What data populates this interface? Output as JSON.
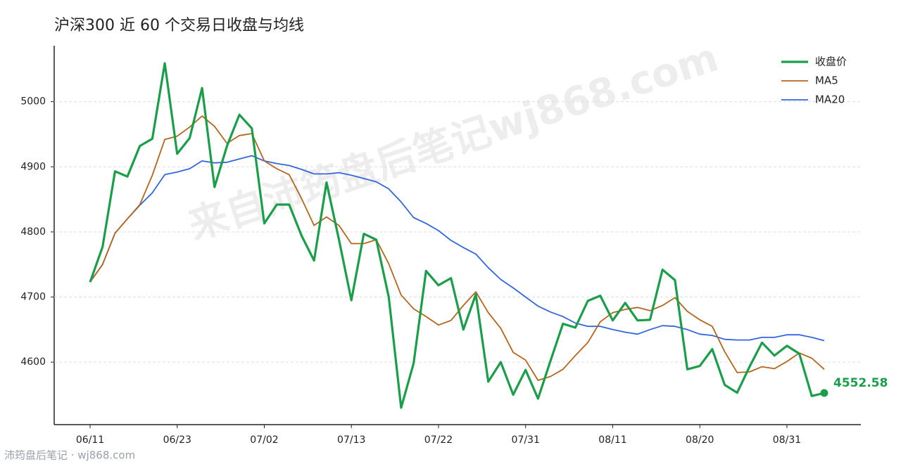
{
  "chart_data": {
    "type": "line",
    "title": "沪深300 近 60 个交易日收盘与均线",
    "watermark": "来自沛筠盘后笔记wj868.com",
    "footer": "沛筠盘后笔记 · wj868.com",
    "categories": [
      "06/11",
      null,
      null,
      null,
      null,
      null,
      null,
      "06/23",
      null,
      null,
      null,
      null,
      null,
      null,
      "07/02",
      null,
      null,
      null,
      null,
      null,
      null,
      "07/13",
      null,
      null,
      null,
      null,
      null,
      null,
      "07/22",
      null,
      null,
      null,
      null,
      null,
      null,
      "07/31",
      null,
      null,
      null,
      null,
      null,
      null,
      "08/11",
      null,
      null,
      null,
      null,
      null,
      null,
      "08/20",
      null,
      null,
      null,
      null,
      null,
      null,
      "08/31",
      null,
      null,
      null
    ],
    "series": [
      {
        "name": "收盘价",
        "color": "#1a9e4a",
        "values": [
          4723,
          4777,
          4893,
          4885,
          4932,
          4943,
          5059,
          4920,
          4944,
          5021,
          4869,
          4932,
          4980,
          4959,
          4813,
          4842,
          4842,
          4794,
          4756,
          4876,
          4788,
          4695,
          4797,
          4788,
          4700,
          4530,
          4598,
          4740,
          4718,
          4729,
          4650,
          4704,
          4570,
          4600,
          4550,
          4588,
          4544,
          4602,
          4659,
          4653,
          4694,
          4702,
          4664,
          4691,
          4664,
          4665,
          4742,
          4726,
          4589,
          4594,
          4620,
          4565,
          4553,
          4593,
          4630,
          4610,
          4625,
          4613,
          4548,
          4552.58
        ]
      },
      {
        "name": "MA5",
        "color": "#b5651d",
        "values": [
          4723,
          4750,
          4798,
          4820,
          4842,
          4887,
          4942,
          4947,
          4961,
          4978,
          4962,
          4936,
          4948,
          4951,
          4909,
          4897,
          4888,
          4851,
          4810,
          4823,
          4810,
          4782,
          4782,
          4788,
          4751,
          4703,
          4682,
          4670,
          4657,
          4664,
          4687,
          4708,
          4676,
          4652,
          4615,
          4603,
          4572,
          4578,
          4589,
          4610,
          4630,
          4662,
          4676,
          4681,
          4684,
          4679,
          4687,
          4699,
          4678,
          4665,
          4655,
          4616,
          4584,
          4585,
          4593,
          4590,
          4601,
          4614,
          4606,
          4589
        ]
      },
      {
        "name": "MA20",
        "color": "#3366dd",
        "values": [
          4723,
          4750,
          4798,
          4820,
          4841,
          4860,
          4888,
          4892,
          4897,
          4909,
          4906,
          4907,
          4912,
          4917,
          4909,
          4905,
          4902,
          4896,
          4889,
          4889,
          4891,
          4887,
          4882,
          4877,
          4866,
          4846,
          4822,
          4813,
          4802,
          4787,
          4776,
          4766,
          4745,
          4727,
          4714,
          4700,
          4686,
          4677,
          4670,
          4660,
          4655,
          4655,
          4650,
          4646,
          4643,
          4650,
          4656,
          4655,
          4650,
          4643,
          4641,
          4635,
          4634,
          4634,
          4638,
          4638,
          4642,
          4642,
          4638,
          4633
        ]
      }
    ],
    "ylim": [
      4504,
      5086
    ],
    "yticks": [
      4600,
      4700,
      4800,
      4900,
      5000
    ],
    "grid": true,
    "legend": "top-right"
  }
}
